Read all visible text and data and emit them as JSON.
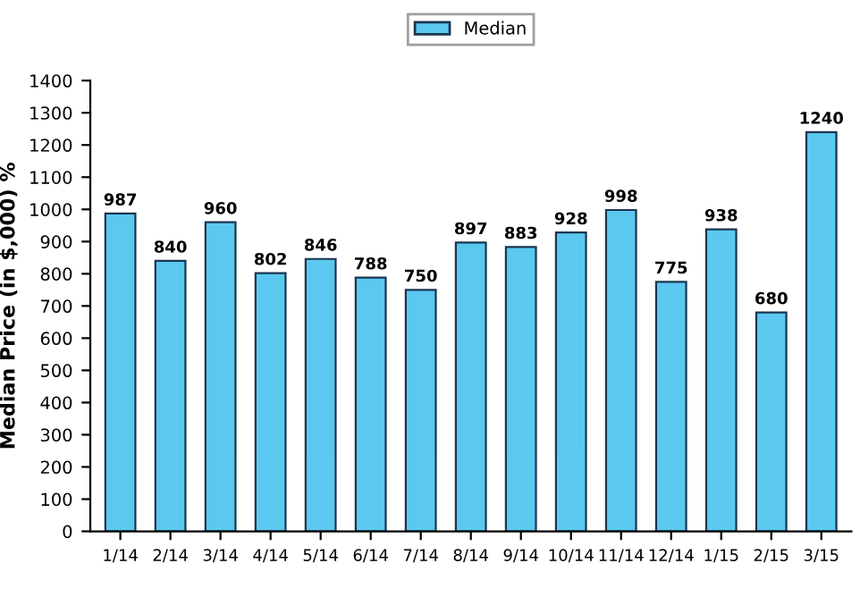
{
  "chart_data": {
    "type": "bar",
    "ylabel": "Median Price (in $,000) %",
    "categories": [
      "1/14",
      "2/14",
      "3/14",
      "4/14",
      "5/14",
      "6/14",
      "7/14",
      "8/14",
      "9/14",
      "10/14",
      "11/14",
      "12/14",
      "1/15",
      "2/15",
      "3/15"
    ],
    "series": [
      {
        "name": "Median",
        "color": "#5bc8f0",
        "values": [
          987,
          840,
          960,
          802,
          846,
          788,
          750,
          897,
          883,
          928,
          998,
          775,
          938,
          680,
          1240
        ]
      }
    ],
    "ylim": [
      0,
      1400
    ],
    "yticks": [
      0,
      100,
      200,
      300,
      400,
      500,
      600,
      700,
      800,
      900,
      1000,
      1100,
      1200,
      1300,
      1400
    ],
    "data_labels": true,
    "legend": "top",
    "grid": false
  }
}
